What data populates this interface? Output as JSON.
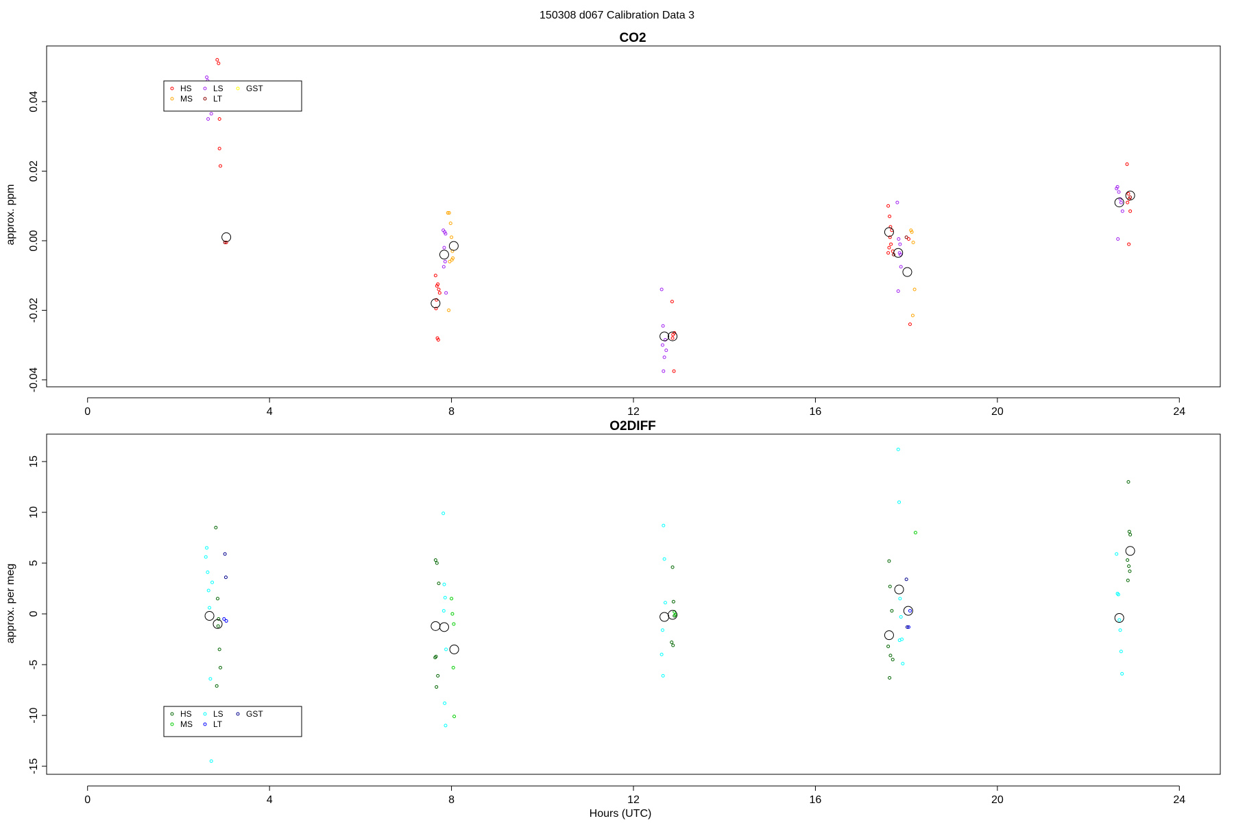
{
  "figure": {
    "title": "150308   d067   Calibration Data 3"
  },
  "chart_data": [
    {
      "type": "scatter",
      "title": "CO2",
      "xlabel": "",
      "ylabel": "approx. ppm",
      "xlim": [
        -0.9,
        24.9
      ],
      "ylim": [
        -0.042,
        0.056
      ],
      "xticks": [
        0,
        4,
        8,
        12,
        16,
        20,
        24
      ],
      "xtick_labels": [
        "0",
        "4",
        "8",
        "12",
        "16",
        "20",
        "24"
      ],
      "yticks": [
        -0.04,
        -0.02,
        0.0,
        0.02,
        0.04
      ],
      "ytick_labels": [
        "-0.04",
        "-0.02",
        "0.00",
        "0.02",
        "0.04"
      ],
      "grid": false,
      "legend": {
        "placement": "top-left",
        "columns": [
          [
            "HS",
            "MS"
          ],
          [
            "LS",
            "LT"
          ],
          [
            "GST"
          ]
        ],
        "colors": {
          "HS": "#ff0000",
          "MS": "#ffa500",
          "LS": "#a020f0",
          "LT": "#8b0000",
          "GST": "#ffff00"
        }
      },
      "series": [
        {
          "name": "HS",
          "color": "#ff0000",
          "x": [
            2.85,
            2.88,
            2.9,
            2.9,
            2.92,
            2.87,
            3.05,
            7.65,
            7.68,
            7.7,
            7.72,
            7.74,
            7.66,
            7.69,
            7.71,
            7.67,
            12.85,
            12.87,
            12.9,
            12.86,
            12.89,
            17.6,
            17.63,
            17.65,
            17.68,
            17.62,
            17.66,
            17.7,
            17.6,
            17.64,
            18.05,
            18.08,
            22.85,
            22.88,
            22.9,
            22.86,
            22.92,
            22.89
          ],
          "y": [
            0.052,
            0.051,
            0.035,
            0.0265,
            0.0215,
            0.045,
            -0.0005,
            -0.01,
            -0.013,
            -0.0125,
            -0.014,
            -0.015,
            -0.0195,
            -0.028,
            -0.0285,
            -0.017,
            -0.0175,
            -0.027,
            -0.0265,
            -0.028,
            -0.0375,
            0.01,
            0.007,
            0.004,
            0.003,
            -0.002,
            -0.001,
            -0.003,
            -0.0035,
            0.001,
            0.0005,
            -0.024,
            0.022,
            0.0135,
            0.012,
            0.011,
            0.0085,
            -0.001
          ]
        },
        {
          "name": "MS",
          "color": "#ffa500",
          "x": [
            7.92,
            7.95,
            7.98,
            8.0,
            8.02,
            8.03,
            8.01,
            7.96,
            7.94,
            18.1,
            18.12,
            18.15,
            18.18,
            18.14
          ],
          "y": [
            0.008,
            0.008,
            0.005,
            0.001,
            -0.003,
            -0.005,
            -0.0055,
            -0.006,
            -0.02,
            0.003,
            0.0025,
            -0.0005,
            -0.014,
            -0.0215
          ]
        },
        {
          "name": "LS",
          "color": "#a020f0",
          "x": [
            2.62,
            2.64,
            2.66,
            2.68,
            2.7,
            2.72,
            2.65,
            2.67,
            7.82,
            7.85,
            7.87,
            7.84,
            7.86,
            7.83,
            7.88,
            12.62,
            12.65,
            12.7,
            12.72,
            12.68,
            12.66,
            12.64,
            17.8,
            17.83,
            17.86,
            17.85,
            17.88,
            17.82,
            17.87,
            22.62,
            22.64,
            22.67,
            22.7,
            22.72,
            22.75,
            22.65
          ],
          "y": [
            0.047,
            0.046,
            0.043,
            0.041,
            0.04,
            0.0365,
            0.035,
            0.038,
            0.003,
            0.0025,
            0.002,
            -0.002,
            -0.006,
            -0.0075,
            -0.015,
            -0.014,
            -0.0245,
            -0.0285,
            -0.0315,
            -0.0335,
            -0.0375,
            -0.03,
            0.011,
            0.0005,
            -0.001,
            -0.0035,
            -0.0075,
            -0.0145,
            -0.004,
            0.015,
            0.0155,
            0.014,
            0.012,
            0.011,
            0.0085,
            0.0005
          ]
        },
        {
          "name": "LT",
          "color": "#8b0000",
          "x": [
            3.02,
            17.72,
            18.0,
            22.92
          ],
          "y": [
            -0.0005,
            -0.004,
            0.001,
            0.0125
          ]
        },
        {
          "name": "GST",
          "color": "#ffff00",
          "x": [],
          "y": []
        },
        {
          "name": "",
          "color": "#000000",
          "large": true,
          "x": [
            3.05,
            7.65,
            7.84,
            8.05,
            12.68,
            12.86,
            17.62,
            17.82,
            18.02,
            22.68,
            22.92
          ],
          "y": [
            0.001,
            -0.018,
            -0.004,
            -0.0015,
            -0.0275,
            -0.0275,
            0.0025,
            -0.0035,
            -0.009,
            0.011,
            0.013
          ]
        }
      ]
    },
    {
      "type": "scatter",
      "title": "O2DIFF",
      "xlabel": "Hours (UTC)",
      "ylabel": "approx. per meg",
      "xlim": [
        -0.9,
        24.9
      ],
      "ylim": [
        -15.8,
        17.7
      ],
      "xticks": [
        0,
        4,
        8,
        12,
        16,
        20,
        24
      ],
      "xtick_labels": [
        "0",
        "4",
        "8",
        "12",
        "16",
        "20",
        "24"
      ],
      "yticks": [
        -15,
        -10,
        -5,
        0,
        5,
        10,
        15
      ],
      "ytick_labels": [
        "-15",
        "-10",
        "-5",
        "0",
        "5",
        "10",
        "15"
      ],
      "grid": false,
      "legend": {
        "placement": "bottom-left",
        "columns": [
          [
            "HS",
            "MS"
          ],
          [
            "LS",
            "LT"
          ],
          [
            "GST"
          ]
        ],
        "colors": {
          "HS": "#006400",
          "MS": "#00cd00",
          "LS": "#00ffff",
          "LT": "#0000ff",
          "GST": "#00008b"
        }
      },
      "series": [
        {
          "name": "HS",
          "color": "#006400",
          "x": [
            2.82,
            2.86,
            2.88,
            2.9,
            2.92,
            2.84,
            2.87,
            7.65,
            7.68,
            7.72,
            7.66,
            7.7,
            7.67,
            7.64,
            12.86,
            12.88,
            12.9,
            12.84,
            12.87,
            17.62,
            17.64,
            17.68,
            17.6,
            17.65,
            17.7,
            17.63,
            22.88,
            22.9,
            22.92,
            22.86,
            22.89,
            22.87,
            22.91
          ],
          "y": [
            8.5,
            1.5,
            -0.5,
            -3.5,
            -5.3,
            -7.1,
            -1.2,
            5.3,
            5.0,
            3.0,
            -4.2,
            -6.1,
            -7.2,
            -4.3,
            4.6,
            1.2,
            -0.2,
            -2.8,
            -3.1,
            5.2,
            2.7,
            0.3,
            -3.2,
            -4.1,
            -4.5,
            -6.3,
            13.0,
            8.1,
            7.8,
            5.3,
            4.7,
            3.3,
            4.2
          ]
        },
        {
          "name": "MS",
          "color": "#00cd00",
          "x": [
            8.0,
            8.02,
            8.04,
            8.06,
            8.05,
            12.9,
            12.92,
            18.2
          ],
          "y": [
            1.5,
            0.0,
            -5.3,
            -10.1,
            -1.0,
            0.2,
            -0.1,
            8.0
          ]
        },
        {
          "name": "LS",
          "color": "#00ffff",
          "x": [
            2.6,
            2.62,
            2.64,
            2.66,
            2.68,
            2.7,
            2.72,
            2.74,
            7.82,
            7.84,
            7.86,
            7.88,
            7.85,
            7.87,
            7.83,
            12.66,
            12.68,
            12.7,
            12.64,
            12.62,
            12.65,
            17.82,
            17.84,
            17.86,
            17.88,
            17.9,
            17.92,
            17.85,
            22.62,
            22.64,
            22.66,
            22.68,
            22.7,
            22.72,
            22.74
          ],
          "y": [
            5.6,
            6.5,
            4.1,
            2.3,
            0.6,
            -6.4,
            -14.5,
            3.1,
            9.9,
            2.9,
            1.6,
            -3.5,
            -8.8,
            -11.0,
            0.3,
            8.7,
            5.4,
            1.1,
            -1.6,
            -4.0,
            -6.1,
            16.2,
            11.0,
            1.5,
            -0.3,
            -2.5,
            -4.9,
            -2.6,
            5.9,
            2.0,
            1.9,
            -0.6,
            -1.6,
            -3.7,
            -5.9
          ]
        },
        {
          "name": "LT",
          "color": "#0000ff",
          "x": [
            3.05,
            3.0,
            18.05,
            18.08
          ],
          "y": [
            -0.7,
            -0.5,
            -1.3,
            0.3
          ]
        },
        {
          "name": "GST",
          "color": "#00008b",
          "x": [
            3.02,
            3.04,
            18.0,
            18.02
          ],
          "y": [
            5.9,
            3.6,
            3.4,
            -1.3
          ]
        },
        {
          "name": "",
          "color": "#000000",
          "large": true,
          "x": [
            2.68,
            2.86,
            7.65,
            7.84,
            8.06,
            12.68,
            12.86,
            17.62,
            17.84,
            18.04,
            22.68,
            22.92
          ],
          "y": [
            -0.2,
            -1.0,
            -1.2,
            -1.3,
            -3.5,
            -0.3,
            -0.1,
            -2.1,
            2.4,
            0.3,
            -0.4,
            6.2
          ]
        }
      ]
    }
  ]
}
